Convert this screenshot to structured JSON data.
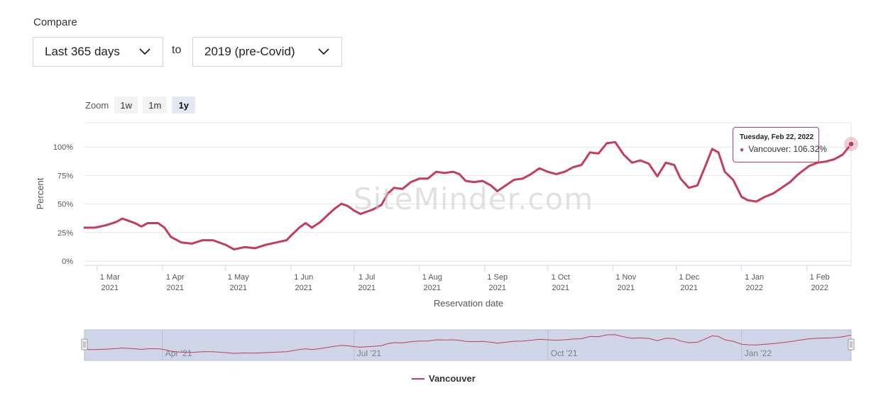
{
  "compare": {
    "label": "Compare",
    "from_select": {
      "value": "Last 365 days"
    },
    "to_label": "to",
    "to_select": {
      "value": "2019 (pre-Covid)"
    }
  },
  "zoom": {
    "label": "Zoom",
    "buttons": [
      {
        "label": "1w",
        "active": false
      },
      {
        "label": "1m",
        "active": false
      },
      {
        "label": "1y",
        "active": true
      }
    ]
  },
  "watermark": "SiteMinder.com",
  "tooltip": {
    "date": "Tuesday, Feb 22, 2022",
    "series": "Vancouver",
    "value_text": "106.32%"
  },
  "legend": {
    "label": "Vancouver",
    "color": "#c43d5e"
  },
  "chart_data": {
    "type": "line",
    "xlabel": "Reservation date",
    "ylabel": "Percent",
    "ylim": [
      0,
      125
    ],
    "yticks": [
      {
        "value": 0,
        "label": "0%"
      },
      {
        "value": 25,
        "label": "25%"
      },
      {
        "value": 50,
        "label": "50%"
      },
      {
        "value": 75,
        "label": "75%"
      },
      {
        "value": 100,
        "label": "100%"
      }
    ],
    "xlim": [
      "2021-02-23",
      "2022-02-22"
    ],
    "xticks": [
      {
        "date": "2021-03-01",
        "line1": "1 Mar",
        "line2": "2021"
      },
      {
        "date": "2021-04-01",
        "line1": "1 Apr",
        "line2": "2021"
      },
      {
        "date": "2021-05-01",
        "line1": "1 May",
        "line2": "2021"
      },
      {
        "date": "2021-06-01",
        "line1": "1 Jun",
        "line2": "2021"
      },
      {
        "date": "2021-07-01",
        "line1": "1 Jul",
        "line2": "2021"
      },
      {
        "date": "2021-08-01",
        "line1": "1 Aug",
        "line2": "2021"
      },
      {
        "date": "2021-09-01",
        "line1": "1 Sep",
        "line2": "2021"
      },
      {
        "date": "2021-10-01",
        "line1": "1 Oct",
        "line2": "2021"
      },
      {
        "date": "2021-11-01",
        "line1": "1 Nov",
        "line2": "2021"
      },
      {
        "date": "2021-12-01",
        "line1": "1 Dec",
        "line2": "2021"
      },
      {
        "date": "2022-01-01",
        "line1": "1 Jan",
        "line2": "2022"
      },
      {
        "date": "2022-02-01",
        "line1": "1 Feb",
        "line2": "2022"
      }
    ],
    "navigator_ticks": [
      {
        "date": "2021-04-01",
        "label": "Apr '21"
      },
      {
        "date": "2021-07-01",
        "label": "Jul '21"
      },
      {
        "date": "2021-10-01",
        "label": "Oct '21"
      },
      {
        "date": "2022-01-01",
        "label": "Jan '22"
      }
    ],
    "grid": true,
    "series": [
      {
        "name": "Vancouver",
        "color": "#c43d5e",
        "points": [
          [
            "2021-02-23",
            33
          ],
          [
            "2021-02-28",
            33
          ],
          [
            "2021-03-05",
            35
          ],
          [
            "2021-03-10",
            38
          ],
          [
            "2021-03-13",
            41
          ],
          [
            "2021-03-16",
            39
          ],
          [
            "2021-03-19",
            37
          ],
          [
            "2021-03-22",
            34
          ],
          [
            "2021-03-25",
            37
          ],
          [
            "2021-03-30",
            37
          ],
          [
            "2021-04-02",
            33
          ],
          [
            "2021-04-05",
            25
          ],
          [
            "2021-04-10",
            20
          ],
          [
            "2021-04-15",
            19
          ],
          [
            "2021-04-20",
            22
          ],
          [
            "2021-04-25",
            22
          ],
          [
            "2021-05-01",
            18
          ],
          [
            "2021-05-05",
            14
          ],
          [
            "2021-05-10",
            16
          ],
          [
            "2021-05-15",
            15
          ],
          [
            "2021-05-20",
            18
          ],
          [
            "2021-05-25",
            20
          ],
          [
            "2021-05-30",
            22
          ],
          [
            "2021-06-01",
            26
          ],
          [
            "2021-06-05",
            33
          ],
          [
            "2021-06-08",
            37
          ],
          [
            "2021-06-11",
            33
          ],
          [
            "2021-06-15",
            38
          ],
          [
            "2021-06-19",
            45
          ],
          [
            "2021-06-22",
            50
          ],
          [
            "2021-06-25",
            54
          ],
          [
            "2021-06-28",
            52
          ],
          [
            "2021-07-01",
            48
          ],
          [
            "2021-07-04",
            45
          ],
          [
            "2021-07-07",
            47
          ],
          [
            "2021-07-10",
            49
          ],
          [
            "2021-07-14",
            53
          ],
          [
            "2021-07-17",
            63
          ],
          [
            "2021-07-20",
            68
          ],
          [
            "2021-07-24",
            67
          ],
          [
            "2021-07-28",
            73
          ],
          [
            "2021-08-01",
            76
          ],
          [
            "2021-08-05",
            76
          ],
          [
            "2021-08-09",
            82
          ],
          [
            "2021-08-13",
            81
          ],
          [
            "2021-08-17",
            82
          ],
          [
            "2021-08-20",
            80
          ],
          [
            "2021-08-23",
            74
          ],
          [
            "2021-08-27",
            73
          ],
          [
            "2021-08-31",
            74
          ],
          [
            "2021-09-04",
            70
          ],
          [
            "2021-09-07",
            65
          ],
          [
            "2021-09-11",
            70
          ],
          [
            "2021-09-15",
            75
          ],
          [
            "2021-09-19",
            76
          ],
          [
            "2021-09-23",
            80
          ],
          [
            "2021-09-27",
            85
          ],
          [
            "2021-10-01",
            82
          ],
          [
            "2021-10-05",
            80
          ],
          [
            "2021-10-09",
            82
          ],
          [
            "2021-10-13",
            86
          ],
          [
            "2021-10-17",
            88
          ],
          [
            "2021-10-21",
            99
          ],
          [
            "2021-10-25",
            98
          ],
          [
            "2021-10-29",
            107
          ],
          [
            "2021-11-02",
            108
          ],
          [
            "2021-11-06",
            97
          ],
          [
            "2021-11-10",
            90
          ],
          [
            "2021-11-14",
            92
          ],
          [
            "2021-11-18",
            89
          ],
          [
            "2021-11-22",
            78
          ],
          [
            "2021-11-26",
            90
          ],
          [
            "2021-11-30",
            88
          ],
          [
            "2021-12-03",
            76
          ],
          [
            "2021-12-07",
            68
          ],
          [
            "2021-12-11",
            70
          ],
          [
            "2021-12-15",
            88
          ],
          [
            "2021-12-18",
            102
          ],
          [
            "2021-12-21",
            99
          ],
          [
            "2021-12-24",
            82
          ],
          [
            "2021-12-28",
            75
          ],
          [
            "2022-01-01",
            60
          ],
          [
            "2022-01-04",
            57
          ],
          [
            "2022-01-08",
            56
          ],
          [
            "2022-01-12",
            60
          ],
          [
            "2022-01-16",
            63
          ],
          [
            "2022-01-20",
            68
          ],
          [
            "2022-01-24",
            73
          ],
          [
            "2022-01-28",
            80
          ],
          [
            "2022-02-02",
            87
          ],
          [
            "2022-02-06",
            90
          ],
          [
            "2022-02-10",
            91
          ],
          [
            "2022-02-14",
            93
          ],
          [
            "2022-02-18",
            97
          ],
          [
            "2022-02-22",
            106.32
          ]
        ]
      }
    ]
  }
}
